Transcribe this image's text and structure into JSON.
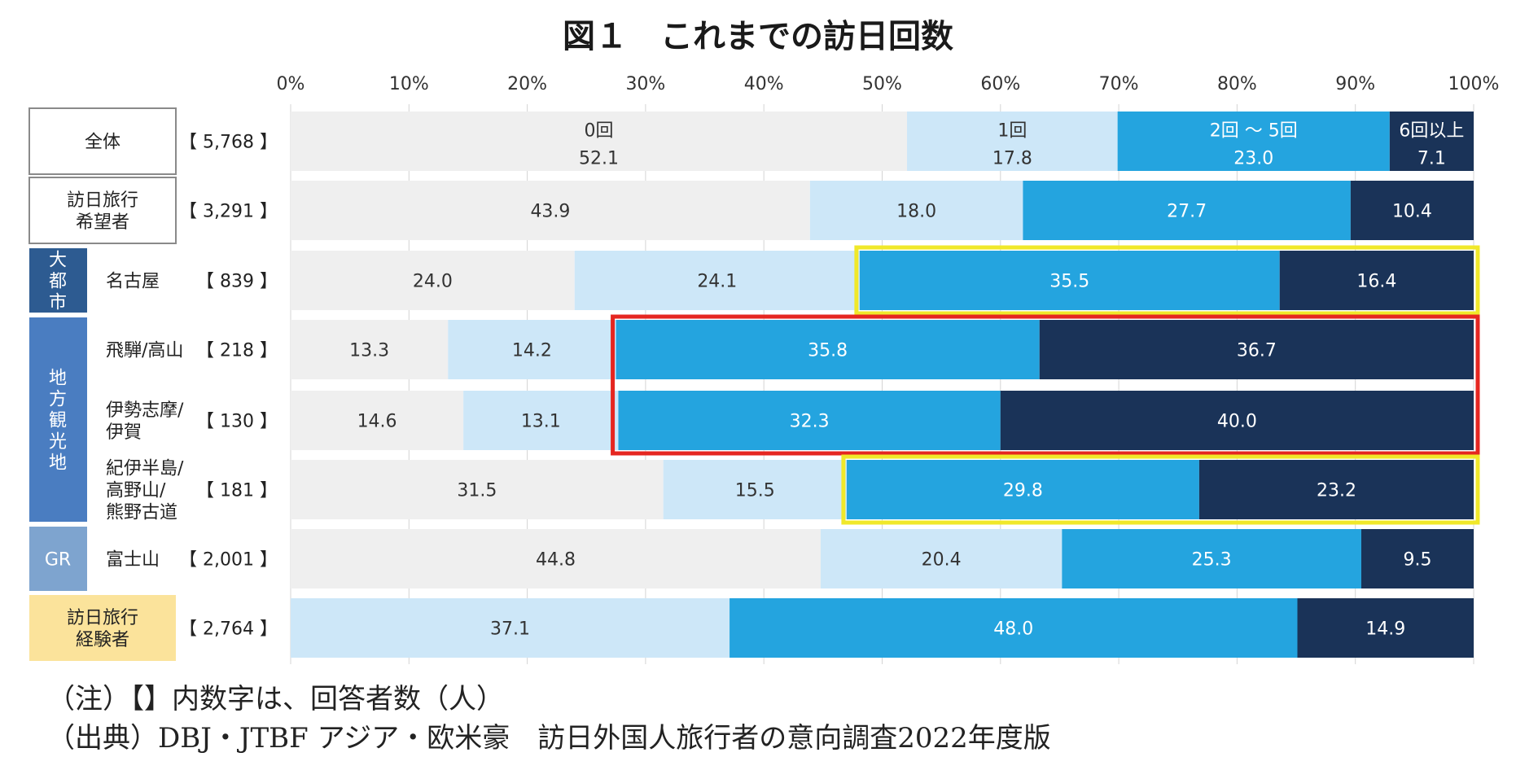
{
  "chart_data": {
    "type": "bar",
    "orientation": "horizontal-stacked-100",
    "title": "図１　これまでの訪日回数",
    "x_ticks": [
      "0%",
      "10%",
      "20%",
      "30%",
      "40%",
      "50%",
      "60%",
      "70%",
      "80%",
      "90%",
      "100%"
    ],
    "xlim": [
      0,
      100
    ],
    "series": [
      {
        "name": "0回",
        "color": "#efefef",
        "text_color": "#333333"
      },
      {
        "name": "1回",
        "color": "#cde7f8",
        "text_color": "#333333"
      },
      {
        "name": "2回 〜 5回",
        "color": "#24a4df",
        "text_color": "#ffffff"
      },
      {
        "name": "6回以上",
        "color": "#1a3358",
        "text_color": "#ffffff"
      }
    ],
    "rows": [
      {
        "label": "全体",
        "label_box": "bordered",
        "count": "【 5,768 】",
        "values": [
          52.1,
          17.8,
          23.0,
          7.1
        ]
      },
      {
        "label": "訪日旅行\n希望者",
        "label_box": "bordered",
        "count": "【 3,291 】",
        "values": [
          43.9,
          18.0,
          27.7,
          10.4
        ]
      },
      {
        "label": "名古屋",
        "label_box": "none",
        "count": "【 839 】",
        "values": [
          24.0,
          24.1,
          35.5,
          16.4
        ]
      },
      {
        "label": "飛騨/高山",
        "label_box": "none",
        "count": "【 218 】",
        "values": [
          13.3,
          14.2,
          35.8,
          36.7
        ]
      },
      {
        "label": "伊勢志摩/\n伊賀",
        "label_box": "none",
        "count": "【 130 】",
        "values": [
          14.6,
          13.1,
          32.3,
          40.0
        ]
      },
      {
        "label": "紀伊半島/\n高野山/\n熊野古道",
        "label_box": "none",
        "count": "【 181 】",
        "values": [
          31.5,
          15.5,
          29.8,
          23.2
        ]
      },
      {
        "label": "富士山",
        "label_box": "none",
        "count": "【 2,001 】",
        "values": [
          44.8,
          20.4,
          25.3,
          9.5
        ]
      },
      {
        "label": "訪日旅行\n経験者",
        "label_box": "filled",
        "count": "【 2,764 】",
        "values": [
          null,
          37.1,
          48.0,
          14.9
        ]
      }
    ],
    "groups": [
      {
        "label": "大都市",
        "rows": [
          2
        ],
        "color": "#2d5b91"
      },
      {
        "label": "地方観光地",
        "rows": [
          3,
          4,
          5
        ],
        "color": "#4a7dc1"
      },
      {
        "label": "GR",
        "rows": [
          6
        ],
        "color": "#7ea4cf"
      }
    ],
    "experienced_box_color": "#fbe39b",
    "highlights": [
      {
        "rows": [
          2
        ],
        "from_series": 2,
        "color": "#f0e82a"
      },
      {
        "rows": [
          3,
          4
        ],
        "from_series": 2,
        "color": "#e52620"
      },
      {
        "rows": [
          5
        ],
        "from_series": 2,
        "color": "#f0e82a"
      }
    ]
  },
  "notes": {
    "note1": "（注）【】内数字は、回答者数（人）",
    "source": "（出典）DBJ・JTBF アジア・欧米豪　訪日外国人旅行者の意向調査2022年度版"
  }
}
